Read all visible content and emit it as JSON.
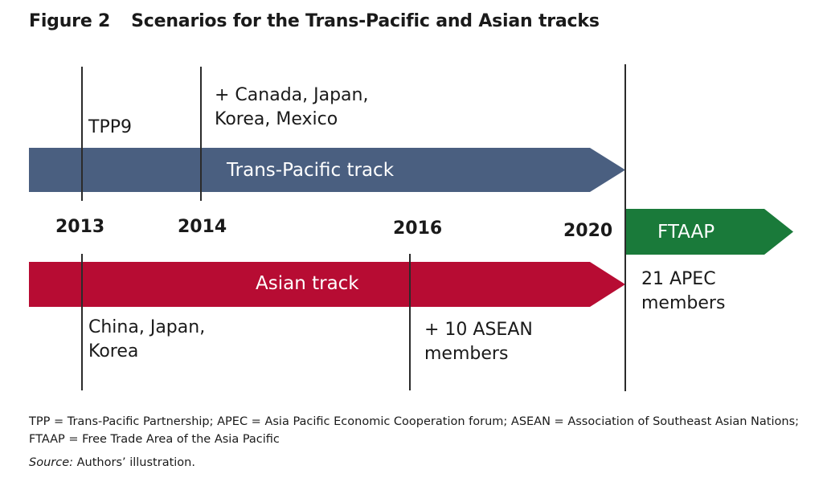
{
  "figure": {
    "number": "Figure 2",
    "title": "Scenarios for the Trans-Pacific and Asian tracks"
  },
  "years": [
    "2013",
    "2014",
    "2016",
    "2020"
  ],
  "tracks": {
    "trans_pacific": {
      "label": "Trans-Pacific track",
      "color": "#4a5f80"
    },
    "asian": {
      "label": "Asian track",
      "color": "#b70c33"
    },
    "ftaap": {
      "label": "FTAAP",
      "color": "#1a7a3a"
    }
  },
  "annotations": {
    "tpp9": "TPP9",
    "canada_line1": "+ Canada, Japan,",
    "canada_line2": "Korea, Mexico",
    "china_line1": "China, Japan,",
    "china_line2": "Korea",
    "asean_line1": "+ 10 ASEAN",
    "asean_line2": "members",
    "apec_line1": "21 APEC",
    "apec_line2": "members"
  },
  "footnote": "TPP = Trans-Pacific Partnership; APEC = Asia Pacific Economic Cooperation forum; ASEAN = Association of Southeast Asian Nations; FTAAP = Free Trade Area of the Asia Pacific",
  "source": {
    "label": "Source:",
    "text": "Authors’ illustration."
  }
}
